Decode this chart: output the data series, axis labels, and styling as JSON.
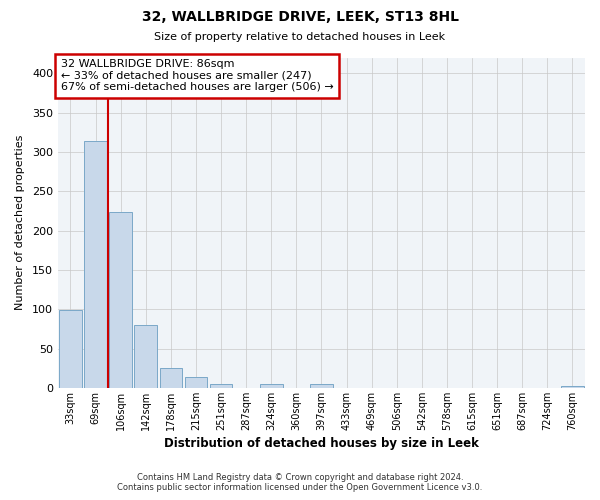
{
  "title": "32, WALLBRIDGE DRIVE, LEEK, ST13 8HL",
  "subtitle": "Size of property relative to detached houses in Leek",
  "xlabel": "Distribution of detached houses by size in Leek",
  "ylabel": "Number of detached properties",
  "bar_labels": [
    "33sqm",
    "69sqm",
    "106sqm",
    "142sqm",
    "178sqm",
    "215sqm",
    "251sqm",
    "287sqm",
    "324sqm",
    "360sqm",
    "397sqm",
    "433sqm",
    "469sqm",
    "506sqm",
    "542sqm",
    "578sqm",
    "615sqm",
    "651sqm",
    "687sqm",
    "724sqm",
    "760sqm"
  ],
  "bar_values": [
    99,
    314,
    224,
    80,
    25,
    14,
    5,
    0,
    5,
    0,
    5,
    0,
    0,
    0,
    0,
    0,
    0,
    0,
    0,
    0,
    3
  ],
  "bar_color": "#c8d8ea",
  "bar_edge_color": "#7aa8c8",
  "vline_color": "#cc0000",
  "vline_x": 1.5,
  "annotation_title": "32 WALLBRIDGE DRIVE: 86sqm",
  "annotation_line1": "← 33% of detached houses are smaller (247)",
  "annotation_line2": "67% of semi-detached houses are larger (506) →",
  "annotation_box_color": "#ffffff",
  "annotation_box_edge": "#cc0000",
  "ylim": [
    0,
    420
  ],
  "yticks": [
    0,
    50,
    100,
    150,
    200,
    250,
    300,
    350,
    400
  ],
  "footer_line1": "Contains HM Land Registry data © Crown copyright and database right 2024.",
  "footer_line2": "Contains public sector information licensed under the Open Government Licence v3.0.",
  "bg_color": "#ffffff",
  "plot_bg_color": "#f0f4f8",
  "title_fontsize": 10,
  "subtitle_fontsize": 8
}
